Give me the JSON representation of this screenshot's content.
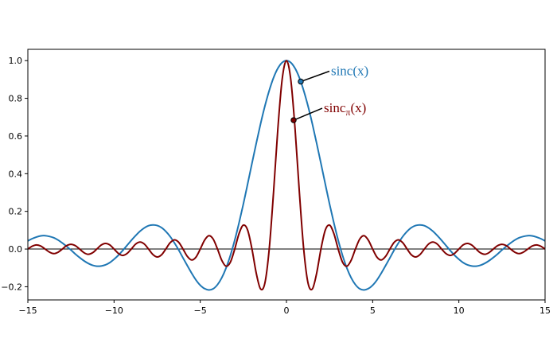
{
  "chart_data": {
    "type": "line",
    "x": [
      -15,
      -14.75,
      -14.5,
      -14.25,
      -14,
      -13.75,
      -13.5,
      -13.25,
      -13,
      -12.75,
      -12.5,
      -12.25,
      -12,
      -11.75,
      -11.5,
      -11.25,
      -11,
      -10.75,
      -10.5,
      -10.25,
      -10,
      -9.75,
      -9.5,
      -9.25,
      -9,
      -8.75,
      -8.5,
      -8.25,
      -8,
      -7.75,
      -7.5,
      -7.25,
      -7,
      -6.75,
      -6.5,
      -6.25,
      -6,
      -5.75,
      -5.5,
      -5.25,
      -5,
      -4.75,
      -4.5,
      -4.25,
      -4,
      -3.75,
      -3.5,
      -3.25,
      -3,
      -2.75,
      -2.5,
      -2.25,
      -2,
      -1.75,
      -1.5,
      -1.25,
      -1,
      -0.75,
      -0.5,
      -0.25,
      0,
      0.25,
      0.5,
      0.75,
      1,
      1.25,
      1.5,
      1.75,
      2,
      2.25,
      2.5,
      2.75,
      3,
      3.25,
      3.5,
      3.75,
      4,
      4.25,
      4.5,
      4.75,
      5,
      5.25,
      5.5,
      5.75,
      6,
      6.25,
      6.5,
      6.75,
      7,
      7.25,
      7.5,
      7.75,
      8,
      8.25,
      8.5,
      8.75,
      9,
      9.25,
      9.5,
      9.75,
      10,
      10.25,
      10.5,
      10.75,
      11,
      11.25,
      11.5,
      11.75,
      12,
      12.25,
      12.5,
      12.75,
      13,
      13.25,
      13.5,
      13.75,
      14,
      14.25,
      14.5,
      14.75,
      15
    ],
    "series": [
      {
        "name": "sinc(x)",
        "color": "#1f77b4",
        "values": [
          0.043,
          0.055,
          0.064,
          0.07,
          0.071,
          0.067,
          0.06,
          0.048,
          0.032,
          0.014,
          -0.005,
          -0.026,
          -0.045,
          -0.062,
          -0.076,
          -0.086,
          -0.091,
          -0.09,
          -0.084,
          -0.072,
          -0.054,
          -0.033,
          -0.008,
          0.019,
          0.046,
          0.071,
          0.094,
          0.112,
          0.124,
          0.128,
          0.125,
          0.114,
          0.094,
          0.067,
          0.033,
          -0.005,
          -0.047,
          -0.088,
          -0.128,
          -0.164,
          -0.192,
          -0.21,
          -0.217,
          -0.211,
          -0.189,
          -0.152,
          -0.1,
          -0.033,
          0.047,
          0.139,
          0.239,
          0.346,
          0.455,
          0.562,
          0.665,
          0.759,
          0.841,
          0.909,
          0.959,
          0.99,
          1,
          0.99,
          0.959,
          0.909,
          0.841,
          0.759,
          0.665,
          0.562,
          0.455,
          0.346,
          0.239,
          0.139,
          0.047,
          -0.033,
          -0.1,
          -0.152,
          -0.189,
          -0.211,
          -0.217,
          -0.21,
          -0.192,
          -0.164,
          -0.128,
          -0.088,
          -0.047,
          -0.005,
          0.033,
          0.067,
          0.094,
          0.114,
          0.125,
          0.128,
          0.124,
          0.112,
          0.094,
          0.071,
          0.046,
          0.019,
          -0.008,
          -0.033,
          -0.054,
          -0.072,
          -0.084,
          -0.09,
          -0.091,
          -0.086,
          -0.076,
          -0.062,
          -0.045,
          -0.026,
          -0.005,
          0.014,
          0.032,
          0.048,
          0.06,
          0.067,
          0.071,
          0.07,
          0.064,
          0.055,
          0.043
        ]
      },
      {
        "name": "sincπ(x)",
        "color": "#800000",
        "values": [
          0,
          0.015,
          0.022,
          0.016,
          0,
          -0.016,
          -0.024,
          -0.017,
          0,
          0.018,
          0.025,
          0.018,
          0,
          -0.019,
          -0.028,
          -0.02,
          0,
          0.021,
          0.03,
          0.022,
          0,
          -0.023,
          -0.034,
          -0.024,
          0,
          0.026,
          0.037,
          0.027,
          0,
          -0.029,
          -0.042,
          -0.031,
          0,
          0.033,
          0.049,
          0.036,
          0,
          -0.039,
          -0.058,
          -0.043,
          0,
          0.047,
          0.071,
          0.053,
          0,
          -0.06,
          -0.091,
          -0.069,
          0,
          0.082,
          0.127,
          0.1,
          0,
          -0.129,
          -0.212,
          -0.18,
          0,
          0.3,
          0.637,
          0.9,
          1,
          0.9,
          0.637,
          0.3,
          0,
          -0.18,
          -0.212,
          -0.129,
          0,
          0.1,
          0.127,
          0.082,
          0,
          -0.069,
          -0.091,
          -0.06,
          0,
          0.053,
          0.071,
          0.047,
          0,
          -0.043,
          -0.058,
          -0.039,
          0,
          0.036,
          0.049,
          0.033,
          0,
          -0.031,
          -0.042,
          -0.029,
          0,
          0.027,
          0.037,
          0.026,
          0,
          -0.024,
          -0.034,
          -0.023,
          0,
          0.022,
          0.03,
          0.021,
          0,
          -0.02,
          -0.028,
          -0.019,
          0,
          0.018,
          0.025,
          0.018,
          0,
          -0.017,
          -0.024,
          -0.016,
          0,
          0.016,
          0.022,
          0.015,
          0
        ]
      }
    ],
    "annotations": [
      {
        "text": "sinc(x)",
        "series": 0,
        "xy": [
          0.83,
          0.889
        ]
      },
      {
        "text": "sinc",
        "subscript": "π",
        "suffix": "(x)",
        "series": 1,
        "xy": [
          0.415,
          0.684
        ]
      }
    ],
    "xlim": [
      -15,
      15
    ],
    "ylim": [
      -0.27,
      1.06
    ],
    "xticks": [
      {
        "value": -15,
        "label": "−15"
      },
      {
        "value": -10,
        "label": "−10"
      },
      {
        "value": -5,
        "label": "−5"
      },
      0,
      5,
      10,
      15
    ],
    "yticks": [
      {
        "value": -0.2,
        "label": "−0.2"
      },
      {
        "value": 0,
        "label": "0.0"
      },
      0.2,
      0.4,
      0.6,
      0.8,
      {
        "value": 1,
        "label": "1.0"
      }
    ],
    "zero_line": 0,
    "grid": false
  }
}
